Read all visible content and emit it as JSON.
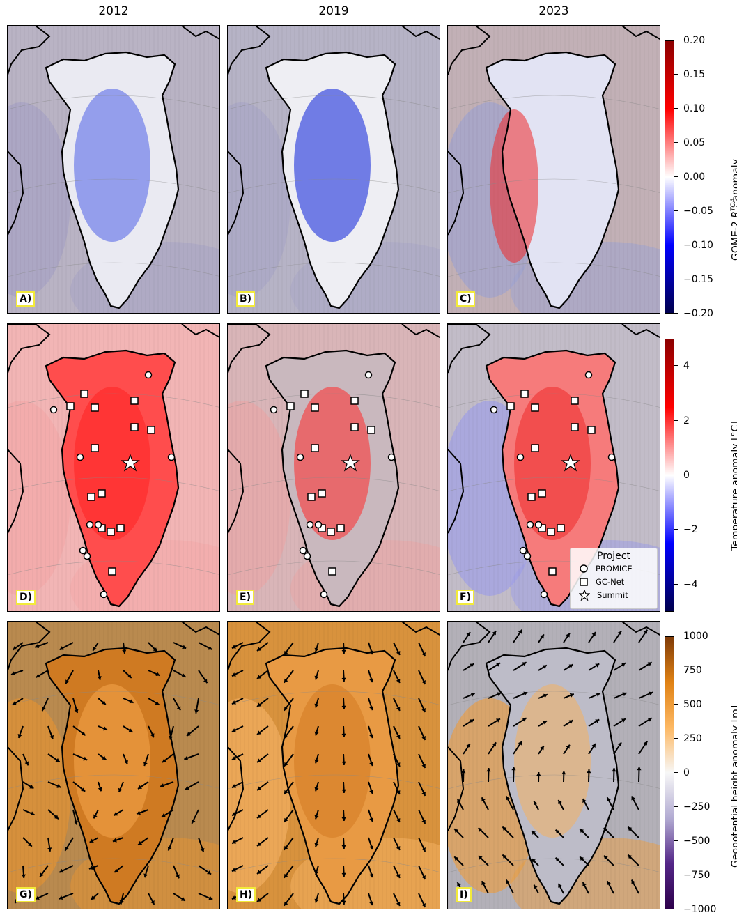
{
  "columns": [
    "2012",
    "2019",
    "2023"
  ],
  "rows": [
    {
      "variable": "reflectance",
      "panels": [
        "A)",
        "B)",
        "C)"
      ],
      "colorbar": {
        "label_prefix": "GOME-2 ",
        "label_symbol": "R",
        "label_sub": "λ",
        "label_sup": "TOA",
        "label_suffix": " anomaly",
        "ticks": [
          "0.20",
          "0.15",
          "0.10",
          "0.05",
          "0.00",
          "−0.05",
          "−0.10",
          "−0.15",
          "−0.20"
        ],
        "colors": [
          "#8b0000",
          "#ff0000",
          "#ffffff",
          "#0000ff",
          "#00004d"
        ]
      }
    },
    {
      "variable": "temperature",
      "panels": [
        "D)",
        "E)",
        "F)"
      ],
      "colorbar": {
        "label": "Temperature anomaly [°C]",
        "ticks": [
          "4",
          "2",
          "0",
          "−2",
          "−4"
        ],
        "colors": [
          "#8b0000",
          "#ff0000",
          "#ffffff",
          "#0000ff",
          "#00004d"
        ]
      }
    },
    {
      "variable": "geopotential",
      "panels": [
        "G)",
        "H)",
        "I)"
      ],
      "colorbar": {
        "label": "Geopotential height anomaly [m]",
        "ticks": [
          "1000",
          "750",
          "500",
          "250",
          "0",
          "−250",
          "−500",
          "−750",
          "−1000"
        ],
        "colors": [
          "#7f3b08",
          "#e08214",
          "#fdb863",
          "#f7f7f7",
          "#b2abd2",
          "#542788",
          "#2d004b"
        ]
      }
    }
  ],
  "legend": {
    "title": "Project",
    "items": [
      {
        "label": "PROMICE",
        "marker": "circle"
      },
      {
        "label": "GC-Net",
        "marker": "square"
      },
      {
        "label": "Summit",
        "marker": "star"
      }
    ]
  }
}
